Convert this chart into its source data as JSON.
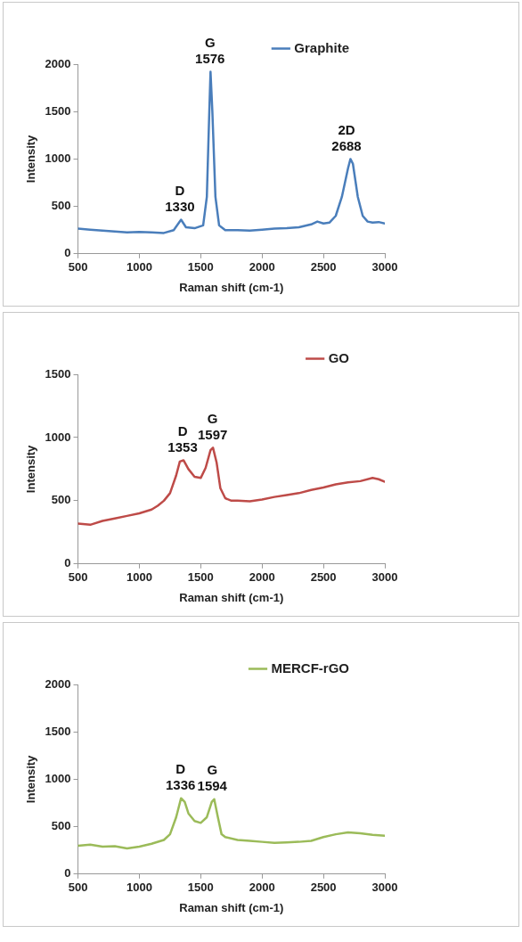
{
  "chart_data": [
    {
      "type": "line",
      "xlabel": "Raman shift (cm-1)",
      "ylabel": "Intensity",
      "legend": "top right",
      "grid": false,
      "marker": "none",
      "line_style": "solid",
      "xlim": [
        500,
        3000
      ],
      "xticks": [
        500,
        1000,
        1500,
        2000,
        2500,
        3000
      ],
      "ylim": [
        0,
        2000
      ],
      "yticks": [
        0,
        500,
        1000,
        1500,
        2000
      ],
      "series": [
        {
          "name": "Graphite",
          "color": "#4a7ebb",
          "x": [
            500,
            600,
            700,
            800,
            900,
            1000,
            1100,
            1200,
            1280,
            1340,
            1380,
            1450,
            1520,
            1550,
            1570,
            1580,
            1595,
            1620,
            1650,
            1700,
            1800,
            1900,
            2000,
            2100,
            2200,
            2300,
            2400,
            2450,
            2500,
            2550,
            2600,
            2650,
            2700,
            2720,
            2740,
            2780,
            2820,
            2860,
            2900,
            2950,
            3000
          ],
          "values": [
            265,
            255,
            245,
            235,
            225,
            230,
            225,
            220,
            250,
            360,
            280,
            270,
            300,
            600,
            1500,
            1920,
            1500,
            600,
            300,
            250,
            250,
            245,
            255,
            265,
            270,
            280,
            310,
            340,
            320,
            330,
            400,
            600,
            900,
            1000,
            950,
            600,
            400,
            340,
            330,
            335,
            320
          ]
        }
      ],
      "annotations": [
        {
          "text": "D\n1330",
          "x": 1330,
          "y": 360
        },
        {
          "text": "G\n1576",
          "x": 1576,
          "y": 1920
        },
        {
          "text": "2D\n2688",
          "x": 2688,
          "y": 1000
        }
      ]
    },
    {
      "type": "line",
      "xlabel": "Raman shift (cm-1)",
      "ylabel": "Intensity",
      "legend": "top right",
      "grid": false,
      "marker": "none",
      "line_style": "solid",
      "xlim": [
        500,
        3000
      ],
      "xticks": [
        500,
        1000,
        1500,
        2000,
        2500,
        3000
      ],
      "ylim": [
        0,
        1500
      ],
      "yticks": [
        0,
        500,
        1000,
        1500
      ],
      "series": [
        {
          "name": "GO",
          "color": "#be4b48",
          "x": [
            500,
            600,
            700,
            800,
            900,
            1000,
            1100,
            1150,
            1200,
            1250,
            1300,
            1330,
            1360,
            1400,
            1450,
            1500,
            1540,
            1580,
            1600,
            1630,
            1660,
            1700,
            1750,
            1800,
            1900,
            2000,
            2100,
            2200,
            2300,
            2400,
            2500,
            2600,
            2700,
            2800,
            2900,
            2950,
            3000
          ],
          "values": [
            320,
            310,
            340,
            360,
            380,
            400,
            430,
            460,
            500,
            560,
            700,
            810,
            820,
            750,
            690,
            680,
            760,
            900,
            920,
            800,
            600,
            520,
            500,
            500,
            495,
            510,
            530,
            545,
            560,
            585,
            605,
            630,
            645,
            655,
            680,
            670,
            650
          ]
        }
      ],
      "annotations": [
        {
          "text": "D\n1353",
          "x": 1353,
          "y": 820
        },
        {
          "text": "G\n1597",
          "x": 1597,
          "y": 920
        }
      ]
    },
    {
      "type": "line",
      "xlabel": "Raman shift (cm-1)",
      "ylabel": "Intensity",
      "legend": "top right",
      "grid": false,
      "marker": "none",
      "line_style": "solid",
      "xlim": [
        500,
        3000
      ],
      "xticks": [
        500,
        1000,
        1500,
        2000,
        2500,
        3000
      ],
      "ylim": [
        0,
        2000
      ],
      "yticks": [
        0,
        500,
        1000,
        1500,
        2000
      ],
      "series": [
        {
          "name": "MERCF-rGO",
          "color": "#9bbb59",
          "x": [
            500,
            600,
            700,
            800,
            900,
            1000,
            1100,
            1200,
            1250,
            1300,
            1340,
            1370,
            1400,
            1450,
            1500,
            1550,
            1590,
            1610,
            1640,
            1670,
            1700,
            1800,
            1900,
            2000,
            2100,
            2200,
            2300,
            2400,
            2500,
            2600,
            2700,
            2800,
            2900,
            3000
          ],
          "values": [
            300,
            310,
            290,
            295,
            270,
            290,
            320,
            360,
            420,
            600,
            800,
            760,
            640,
            560,
            540,
            600,
            760,
            790,
            600,
            420,
            390,
            360,
            350,
            340,
            330,
            335,
            340,
            350,
            390,
            420,
            440,
            430,
            415,
            405
          ]
        }
      ],
      "annotations": [
        {
          "text": "D\n1336",
          "x": 1336,
          "y": 800
        },
        {
          "text": "G\n1594",
          "x": 1594,
          "y": 790
        }
      ]
    }
  ]
}
